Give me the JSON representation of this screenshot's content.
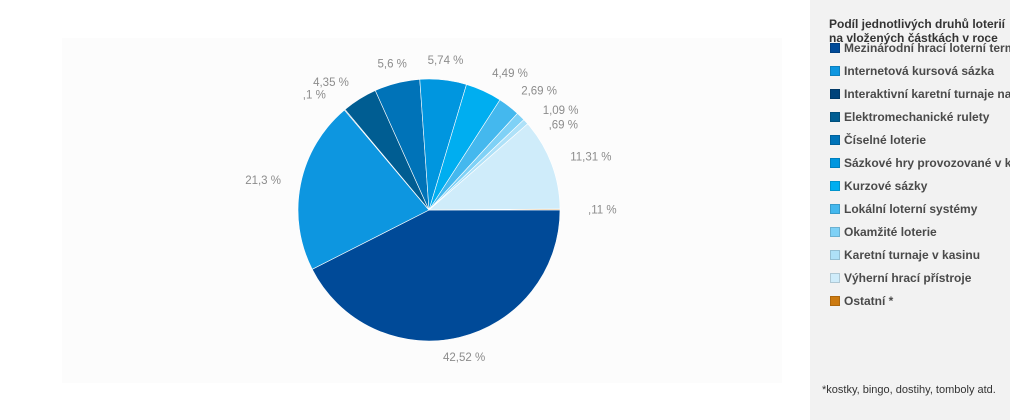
{
  "chart_data": {
    "type": "pie",
    "title": "Podíl jednotlivých druhů loterií na vložených částkách v roce",
    "categories": [
      "Mezinárodní hrací loterní terminály",
      "Internetová kursová sázka",
      "Interaktivní karetní turnaje na internetu",
      "Elektromechanické rulety",
      "Číselné loterie",
      "Sázkové hry provozované v kasinu",
      "Kurzové sázky",
      "Lokální loterní systémy",
      "Okamžité loterie",
      "Karetní turnaje v kasinu",
      "Výherní hrací přístroje",
      "Ostatní *"
    ],
    "values": [
      42.52,
      21.3,
      0.1,
      4.35,
      5.6,
      5.74,
      4.49,
      2.69,
      1.09,
      0.69,
      11.31,
      0.11
    ],
    "data_labels": [
      "42,52 %",
      "21,3 %",
      ",1 %",
      "4,35 %",
      "5,6 %",
      "5,74 %",
      "4,49 %",
      "2,69 %",
      "1,09 %",
      ",69 %",
      "11,31 %",
      ",11 %"
    ],
    "colors": [
      "#004a98",
      "#0d96e0",
      "#00437a",
      "#005d92",
      "#0073b8",
      "#0096df",
      "#00aef0",
      "#44b8ee",
      "#7fd1f6",
      "#aee1f8",
      "#cfecfa",
      "#cc7a10"
    ],
    "legend": "right"
  },
  "legend": {
    "title": "Podíl jednotlivých druhů loterií na vložených částkách v roce",
    "items": [
      "Mezinárodní hrací loterní terminály",
      "Internetová kursová sázka",
      "Interaktivní karetní turnaje na internetu",
      "Elektromechanické rulety",
      "Číselné loterie",
      "Sázkové hry provozované v kasinu",
      "Kurzové sázky",
      "Lokální loterní systémy",
      "Okamžité loterie",
      "Karetní turnaje v kasinu",
      "Výherní hrací přístroje",
      "Ostatní *"
    ]
  },
  "footnote": "*kostky, bingo, dostihy, tomboly atd."
}
